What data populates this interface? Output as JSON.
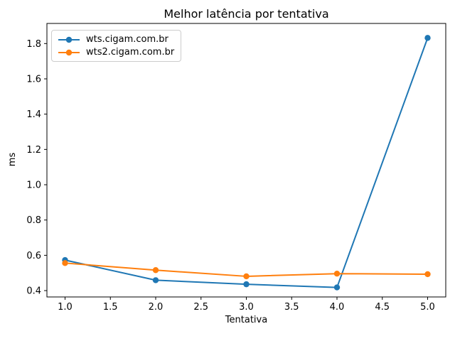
{
  "chart_data": {
    "type": "line",
    "title": "Melhor latência por tentativa",
    "xlabel": "Tentativa",
    "ylabel": "ms",
    "x": [
      1,
      2,
      3,
      4,
      5
    ],
    "series": [
      {
        "name": "wts.cigam.com.br",
        "color": "#1f77b4",
        "values": [
          0.573,
          0.459,
          0.436,
          0.418,
          1.832
        ]
      },
      {
        "name": "wts2.cigam.com.br",
        "color": "#ff7f0e",
        "values": [
          0.556,
          0.516,
          0.481,
          0.496,
          0.493
        ]
      }
    ],
    "xlim": [
      0.8,
      5.2
    ],
    "ylim": [
      0.364,
      1.914
    ],
    "xticks": [
      1.0,
      1.5,
      2.0,
      2.5,
      3.0,
      3.5,
      4.0,
      4.5,
      5.0
    ],
    "yticks": [
      0.4,
      0.6,
      0.8,
      1.0,
      1.2,
      1.4,
      1.6,
      1.8
    ],
    "grid": false,
    "legend_position": "upper-left",
    "marker": "circle",
    "colors": {
      "background": "#ffffff",
      "spine": "#000000",
      "text": "#000000",
      "legend_border": "#cccccc"
    }
  }
}
